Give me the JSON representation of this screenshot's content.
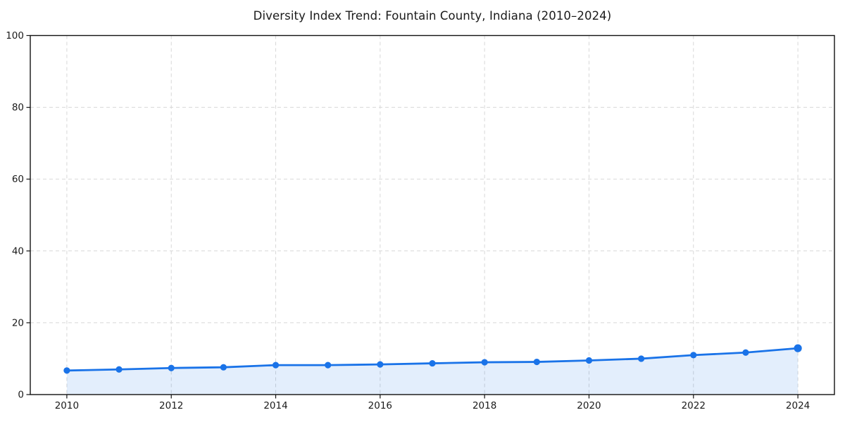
{
  "chart_data": {
    "type": "area",
    "title": "Diversity Index Trend: Fountain County, Indiana (2010–2024)",
    "series_name": "Diversity Index",
    "x": [
      2010,
      2011,
      2012,
      2013,
      2014,
      2015,
      2016,
      2017,
      2018,
      2019,
      2020,
      2021,
      2022,
      2023,
      2024
    ],
    "values": [
      6.7,
      7.0,
      7.4,
      7.6,
      8.2,
      8.2,
      8.4,
      8.7,
      9.0,
      9.1,
      9.5,
      10.0,
      11.0,
      11.7,
      12.9
    ],
    "xlabel": "",
    "ylabel": "",
    "xlim": [
      2009.3,
      2024.7
    ],
    "ylim": [
      0,
      100
    ],
    "x_ticks": [
      2010,
      2012,
      2014,
      2016,
      2018,
      2020,
      2022,
      2024
    ],
    "y_ticks": [
      0,
      20,
      40,
      60,
      80,
      100
    ],
    "grid": "dashed",
    "legend_position": "none",
    "colors": {
      "line": "#1a73e8",
      "fill": "#1a73e8",
      "fill_opacity": "0.12",
      "grid": "#d7d7d7",
      "spine": "#111111",
      "tick_text": "#1a1a1a",
      "background": "#ffffff"
    }
  }
}
